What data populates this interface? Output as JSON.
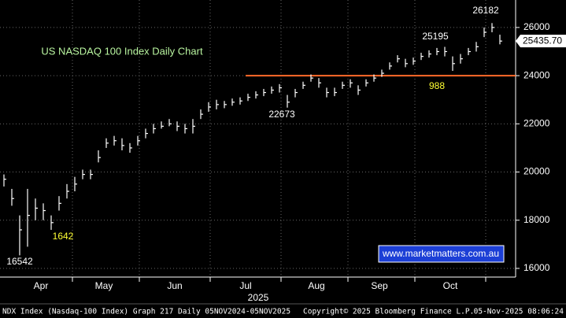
{
  "chart_data": {
    "type": "range-bar",
    "title": "US NASDAQ 100 Index Daily Chart",
    "x_axis_label": "2025",
    "categories": [
      null,
      null,
      null,
      null,
      null,
      "Apr",
      null,
      null,
      null,
      null,
      null,
      null,
      null,
      "May",
      null,
      null,
      null,
      null,
      null,
      null,
      null,
      null,
      "Jun",
      null,
      null,
      null,
      null,
      null,
      null,
      null,
      null,
      "Jul",
      null,
      null,
      null,
      null,
      null,
      null,
      null,
      null,
      "Aug",
      null,
      null,
      null,
      null,
      null,
      null,
      null,
      "Sep",
      null,
      null,
      null,
      null,
      null,
      null,
      null,
      null,
      "Oct",
      null,
      null,
      null,
      null,
      null,
      null
    ],
    "series": [
      {
        "name": "High",
        "color": "#ffffff",
        "values": [
          19900,
          19300,
          18200,
          19300,
          18900,
          18700,
          18200,
          19000,
          19500,
          19800,
          20100,
          20100,
          20900,
          21400,
          21500,
          21400,
          21200,
          21500,
          21800,
          22000,
          22100,
          22200,
          22100,
          22000,
          22200,
          22600,
          22900,
          23000,
          22950,
          23050,
          23100,
          23250,
          23350,
          23450,
          23550,
          23650,
          23200,
          23450,
          23750,
          24050,
          23900,
          23500,
          23500,
          23750,
          23850,
          23600,
          23850,
          24050,
          24250,
          24550,
          24850,
          24700,
          24750,
          24950,
          25050,
          25150,
          25195,
          24800,
          24900,
          25150,
          25400,
          26000,
          26182,
          25700
        ]
      },
      {
        "name": "Low",
        "color": "#ffffff",
        "values": [
          19400,
          18600,
          16542,
          16900,
          18000,
          18000,
          17600,
          18400,
          18900,
          19200,
          19700,
          19700,
          20400,
          21000,
          21100,
          20900,
          20800,
          21100,
          21400,
          21600,
          21800,
          21900,
          21700,
          21600,
          21600,
          22200,
          22500,
          22600,
          22650,
          22750,
          22800,
          22950,
          23050,
          23150,
          23250,
          23300,
          22673,
          23100,
          23450,
          23750,
          23500,
          23100,
          23150,
          23450,
          23500,
          23200,
          23550,
          23750,
          23950,
          24250,
          24550,
          24350,
          24450,
          24650,
          24750,
          24850,
          24800,
          24200,
          24500,
          24850,
          25000,
          25600,
          25800,
          25300
        ]
      },
      {
        "name": "Close",
        "color": "#ffffff",
        "values": [
          19700,
          18900,
          17600,
          18200,
          18500,
          18400,
          17900,
          18700,
          19200,
          19500,
          19900,
          19900,
          20600,
          21200,
          21300,
          21100,
          21000,
          21300,
          21600,
          21800,
          21900,
          22000,
          21900,
          21800,
          21900,
          22400,
          22700,
          22800,
          22800,
          22900,
          22950,
          23100,
          23200,
          23300,
          23400,
          23500,
          22900,
          23300,
          23600,
          23900,
          23700,
          23300,
          23300,
          23600,
          23700,
          23400,
          23700,
          23900,
          24100,
          24400,
          24700,
          24500,
          24600,
          24800,
          24900,
          25000,
          25000,
          24500,
          24700,
          25000,
          25200,
          25800,
          26000,
          25435.7
        ]
      }
    ],
    "last_price_label": "25435.70",
    "reference_line": {
      "value": 24000,
      "color": "#ff6a2a"
    },
    "annotations": [
      {
        "text": "26182",
        "color": "#ffffff"
      },
      {
        "text": "25195",
        "color": "#ffffff"
      },
      {
        "text": "988",
        "color": "#ffff33"
      },
      {
        "text": "22673",
        "color": "#ffffff"
      },
      {
        "text": "1642",
        "color": "#ffff33"
      },
      {
        "text": "16542",
        "color": "#ffffff"
      }
    ],
    "watermark": "www.marketmatters.com.au",
    "ylim": [
      15640,
      27140
    ],
    "yticks": [
      16000,
      18000,
      20000,
      22000,
      24000,
      26000
    ],
    "grid": true,
    "footer": {
      "left": "NDX Index (Nasdaq-100 Index) Graph 217 Daily 05NOV2024-05NOV2025",
      "center": "Copyright© 2025 Bloomberg Finance L.P.",
      "right": "05-Nov-2025 08:06:24"
    }
  }
}
